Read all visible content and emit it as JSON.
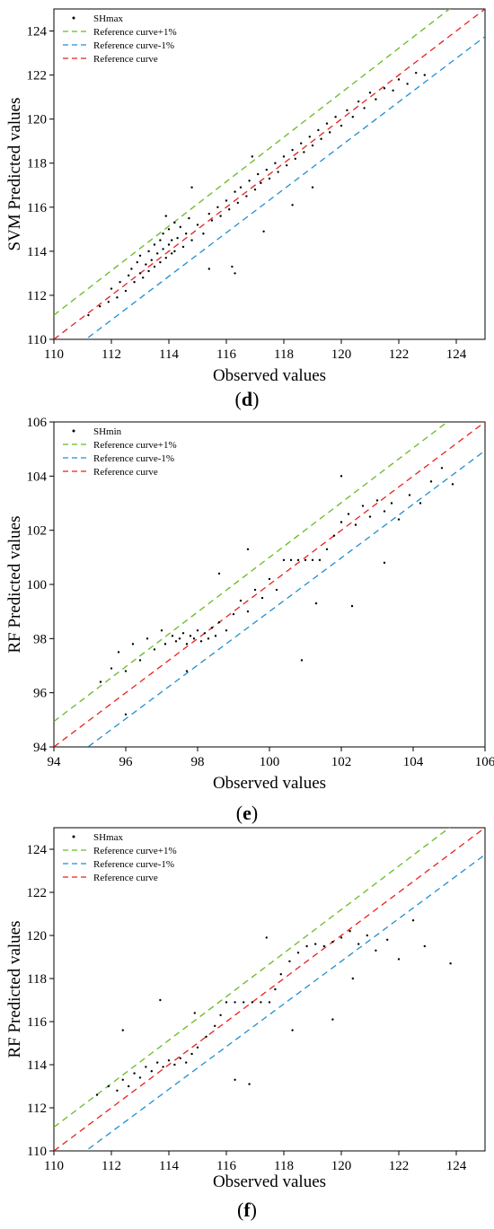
{
  "chart_data": [
    {
      "type": "scatter",
      "panel": "d",
      "caption": "(d)",
      "caption_letter": "d",
      "xlabel": "Observed values",
      "ylabel": "SVM Predicted values",
      "xlim": [
        110,
        125
      ],
      "ylim": [
        110,
        125
      ],
      "xticks": [
        110,
        112,
        114,
        116,
        118,
        120,
        122,
        124
      ],
      "yticks": [
        110,
        112,
        114,
        116,
        118,
        120,
        122,
        124
      ],
      "legend_position": "top-left",
      "series": [
        {
          "name": "SHmax",
          "kind": "points",
          "color": "#000000"
        },
        {
          "name": "Reference curve+1%",
          "kind": "line",
          "slope": 1.01,
          "color": "#66bb22"
        },
        {
          "name": "Reference curve-1%",
          "kind": "line",
          "slope": 0.99,
          "color": "#1f8fd0"
        },
        {
          "name": "Reference curve",
          "kind": "line",
          "slope": 1.0,
          "color": "#e8221e"
        }
      ],
      "points": [
        [
          111.2,
          111.1
        ],
        [
          111.6,
          111.5
        ],
        [
          111.9,
          111.7
        ],
        [
          112.0,
          112.3
        ],
        [
          112.2,
          111.9
        ],
        [
          112.3,
          112.6
        ],
        [
          112.5,
          112.2
        ],
        [
          112.6,
          112.9
        ],
        [
          112.7,
          113.2
        ],
        [
          112.8,
          112.6
        ],
        [
          112.9,
          113.5
        ],
        [
          113.0,
          113.0
        ],
        [
          113.0,
          113.8
        ],
        [
          113.1,
          112.8
        ],
        [
          113.2,
          113.4
        ],
        [
          113.3,
          114.0
        ],
        [
          113.3,
          113.1
        ],
        [
          113.4,
          113.6
        ],
        [
          113.5,
          114.3
        ],
        [
          113.5,
          113.3
        ],
        [
          113.6,
          113.9
        ],
        [
          113.7,
          114.5
        ],
        [
          113.7,
          113.5
        ],
        [
          113.8,
          114.1
        ],
        [
          113.8,
          114.8
        ],
        [
          113.9,
          113.7
        ],
        [
          114.0,
          114.3
        ],
        [
          114.0,
          115.0
        ],
        [
          114.1,
          113.9
        ],
        [
          114.1,
          114.5
        ],
        [
          114.2,
          115.3
        ],
        [
          114.2,
          114.0
        ],
        [
          114.3,
          114.6
        ],
        [
          114.4,
          115.1
        ],
        [
          114.5,
          114.2
        ],
        [
          114.6,
          114.8
        ],
        [
          114.7,
          115.5
        ],
        [
          114.8,
          114.5
        ],
        [
          115.0,
          115.2
        ],
        [
          115.2,
          114.8
        ],
        [
          115.4,
          115.7
        ],
        [
          115.5,
          115.4
        ],
        [
          115.7,
          116.0
        ],
        [
          115.8,
          115.6
        ],
        [
          116.0,
          116.3
        ],
        [
          116.1,
          115.9
        ],
        [
          116.3,
          116.7
        ],
        [
          116.4,
          116.2
        ],
        [
          116.5,
          116.9
        ],
        [
          116.7,
          116.5
        ],
        [
          116.8,
          117.2
        ],
        [
          117.0,
          116.8
        ],
        [
          117.1,
          117.5
        ],
        [
          117.2,
          117.1
        ],
        [
          117.4,
          117.7
        ],
        [
          117.5,
          117.3
        ],
        [
          117.7,
          118.0
        ],
        [
          117.8,
          117.6
        ],
        [
          118.0,
          118.3
        ],
        [
          118.1,
          117.9
        ],
        [
          118.3,
          118.6
        ],
        [
          118.4,
          118.2
        ],
        [
          118.6,
          118.9
        ],
        [
          118.7,
          118.5
        ],
        [
          118.9,
          119.2
        ],
        [
          119.0,
          118.8
        ],
        [
          119.2,
          119.5
        ],
        [
          119.3,
          119.1
        ],
        [
          119.5,
          119.8
        ],
        [
          119.6,
          119.4
        ],
        [
          119.8,
          120.1
        ],
        [
          120.0,
          119.7
        ],
        [
          120.2,
          120.4
        ],
        [
          120.4,
          120.1
        ],
        [
          120.6,
          120.8
        ],
        [
          120.8,
          120.5
        ],
        [
          121.0,
          121.2
        ],
        [
          121.2,
          120.9
        ],
        [
          121.5,
          121.4
        ],
        [
          121.8,
          121.3
        ],
        [
          122.0,
          121.8
        ],
        [
          122.3,
          121.6
        ],
        [
          122.6,
          122.1
        ],
        [
          122.9,
          122.0
        ],
        [
          116.3,
          113.0
        ],
        [
          116.2,
          113.3
        ],
        [
          115.4,
          113.2
        ],
        [
          117.3,
          114.9
        ],
        [
          118.3,
          116.1
        ],
        [
          119.0,
          116.9
        ],
        [
          114.8,
          116.9
        ],
        [
          116.9,
          118.3
        ],
        [
          113.9,
          115.6
        ]
      ]
    },
    {
      "type": "scatter",
      "panel": "e",
      "caption": "(e)",
      "caption_letter": "e",
      "xlabel": "Observed values",
      "ylabel": "RF Predicted values",
      "xlim": [
        94,
        106
      ],
      "ylim": [
        94,
        106
      ],
      "xticks": [
        94,
        96,
        98,
        100,
        102,
        104,
        106
      ],
      "yticks": [
        94,
        96,
        98,
        100,
        102,
        104,
        106
      ],
      "legend_position": "top-left",
      "series": [
        {
          "name": "SHmin",
          "kind": "points",
          "color": "#000000"
        },
        {
          "name": "Reference curve+1%",
          "kind": "line",
          "slope": 1.01,
          "color": "#66bb22"
        },
        {
          "name": "Reference curve-1%",
          "kind": "line",
          "slope": 0.99,
          "color": "#1f8fd0"
        },
        {
          "name": "Reference curve",
          "kind": "line",
          "slope": 1.0,
          "color": "#e8221e"
        }
      ],
      "points": [
        [
          95.3,
          96.4
        ],
        [
          95.6,
          96.9
        ],
        [
          95.8,
          97.5
        ],
        [
          96.0,
          96.8
        ],
        [
          96.2,
          97.8
        ],
        [
          96.4,
          97.2
        ],
        [
          96.6,
          98.0
        ],
        [
          96.8,
          97.6
        ],
        [
          97.0,
          98.3
        ],
        [
          97.1,
          97.8
        ],
        [
          97.3,
          98.1
        ],
        [
          97.4,
          97.9
        ],
        [
          97.5,
          98.0
        ],
        [
          97.6,
          98.2
        ],
        [
          97.7,
          97.8
        ],
        [
          97.8,
          98.1
        ],
        [
          97.9,
          98.0
        ],
        [
          98.0,
          98.3
        ],
        [
          98.1,
          97.9
        ],
        [
          98.2,
          98.2
        ],
        [
          98.3,
          98.0
        ],
        [
          98.4,
          98.4
        ],
        [
          98.5,
          98.1
        ],
        [
          98.6,
          98.6
        ],
        [
          98.8,
          98.3
        ],
        [
          99.0,
          98.9
        ],
        [
          99.2,
          99.4
        ],
        [
          99.4,
          99.0
        ],
        [
          99.6,
          99.8
        ],
        [
          99.8,
          99.5
        ],
        [
          100.0,
          100.2
        ],
        [
          100.2,
          99.8
        ],
        [
          100.4,
          100.9
        ],
        [
          100.6,
          100.9
        ],
        [
          100.8,
          100.9
        ],
        [
          101.0,
          100.9
        ],
        [
          101.2,
          100.9
        ],
        [
          101.4,
          100.9
        ],
        [
          101.6,
          101.3
        ],
        [
          101.8,
          101.8
        ],
        [
          102.0,
          102.3
        ],
        [
          102.2,
          102.6
        ],
        [
          102.4,
          102.2
        ],
        [
          102.6,
          102.9
        ],
        [
          102.8,
          102.5
        ],
        [
          103.0,
          103.1
        ],
        [
          103.2,
          102.7
        ],
        [
          103.4,
          103.0
        ],
        [
          103.6,
          102.4
        ],
        [
          103.9,
          103.3
        ],
        [
          104.2,
          103.0
        ],
        [
          104.5,
          103.8
        ],
        [
          104.8,
          104.3
        ],
        [
          105.1,
          103.7
        ],
        [
          96.0,
          95.2
        ],
        [
          97.7,
          96.8
        ],
        [
          98.6,
          100.4
        ],
        [
          99.4,
          101.3
        ],
        [
          100.9,
          97.2
        ],
        [
          101.3,
          99.3
        ],
        [
          102.3,
          99.2
        ],
        [
          102.0,
          104.0
        ],
        [
          103.2,
          100.8
        ]
      ]
    },
    {
      "type": "scatter",
      "panel": "f",
      "caption": "(f)",
      "caption_letter": "f",
      "xlabel": "Observed values",
      "ylabel": "RF Predicted values",
      "xlim": [
        110,
        125
      ],
      "ylim": [
        110,
        125
      ],
      "xticks": [
        110,
        112,
        114,
        116,
        118,
        120,
        122,
        124
      ],
      "yticks": [
        110,
        112,
        114,
        116,
        118,
        120,
        122,
        124
      ],
      "legend_position": "top-left",
      "series": [
        {
          "name": "SHmax",
          "kind": "points",
          "color": "#000000"
        },
        {
          "name": "Reference curve+1%",
          "kind": "line",
          "slope": 1.01,
          "color": "#66bb22"
        },
        {
          "name": "Reference curve-1%",
          "kind": "line",
          "slope": 0.99,
          "color": "#1f8fd0"
        },
        {
          "name": "Reference curve",
          "kind": "line",
          "slope": 1.0,
          "color": "#e8221e"
        }
      ],
      "points": [
        [
          111.5,
          112.6
        ],
        [
          111.9,
          113.0
        ],
        [
          112.2,
          112.8
        ],
        [
          112.4,
          113.3
        ],
        [
          112.6,
          113.0
        ],
        [
          112.8,
          113.6
        ],
        [
          113.0,
          113.4
        ],
        [
          113.2,
          113.9
        ],
        [
          113.4,
          113.7
        ],
        [
          113.6,
          114.1
        ],
        [
          113.8,
          113.9
        ],
        [
          114.0,
          114.2
        ],
        [
          114.2,
          114.0
        ],
        [
          114.4,
          114.3
        ],
        [
          114.6,
          114.1
        ],
        [
          114.8,
          114.5
        ],
        [
          115.0,
          114.8
        ],
        [
          115.3,
          115.3
        ],
        [
          115.6,
          115.8
        ],
        [
          115.8,
          116.3
        ],
        [
          116.0,
          116.9
        ],
        [
          116.3,
          116.9
        ],
        [
          116.6,
          116.9
        ],
        [
          116.9,
          116.9
        ],
        [
          117.2,
          116.9
        ],
        [
          117.5,
          116.9
        ],
        [
          117.7,
          117.5
        ],
        [
          117.9,
          118.2
        ],
        [
          118.2,
          118.8
        ],
        [
          118.5,
          119.2
        ],
        [
          118.8,
          119.5
        ],
        [
          119.1,
          119.6
        ],
        [
          119.4,
          119.5
        ],
        [
          119.7,
          119.7
        ],
        [
          120.0,
          119.9
        ],
        [
          120.3,
          120.2
        ],
        [
          120.6,
          119.6
        ],
        [
          120.9,
          120.0
        ],
        [
          121.2,
          119.3
        ],
        [
          121.6,
          119.8
        ],
        [
          122.0,
          118.9
        ],
        [
          122.5,
          120.7
        ],
        [
          122.9,
          119.5
        ],
        [
          113.7,
          117.0
        ],
        [
          112.4,
          115.6
        ],
        [
          116.3,
          113.3
        ],
        [
          116.8,
          113.1
        ],
        [
          118.3,
          115.6
        ],
        [
          119.7,
          116.1
        ],
        [
          117.4,
          119.9
        ],
        [
          114.9,
          116.4
        ],
        [
          120.4,
          118.0
        ],
        [
          123.8,
          118.7
        ]
      ]
    }
  ]
}
